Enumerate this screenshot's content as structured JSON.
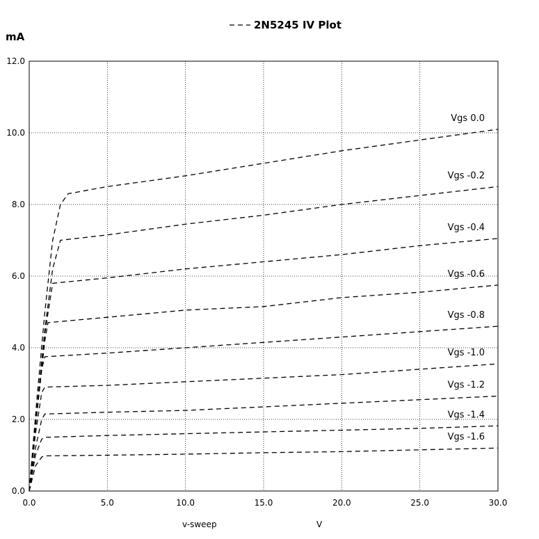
{
  "chart_data": {
    "type": "line",
    "title": "2N5245 IV Plot",
    "y_unit": "mA",
    "xlabel": "v-sweep",
    "xunit": "V",
    "xlim": [
      0,
      30
    ],
    "ylim": [
      0,
      12
    ],
    "xticks": [
      "0.0",
      "5.0",
      "10.0",
      "15.0",
      "20.0",
      "25.0",
      "30.0"
    ],
    "yticks": [
      "0.0",
      "2.0",
      "4.0",
      "6.0",
      "8.0",
      "10.0",
      "12.0"
    ],
    "grid": true,
    "line_style": "dashed",
    "series": [
      {
        "name": "Vgs 0.0",
        "x": [
          0,
          0.5,
          1.0,
          1.5,
          2.0,
          2.5,
          5,
          10,
          15,
          20,
          25,
          30
        ],
        "y": [
          0,
          2.6,
          5.0,
          7.0,
          8.0,
          8.3,
          8.5,
          8.8,
          9.15,
          9.5,
          9.8,
          10.1
        ]
      },
      {
        "name": "Vgs -0.2",
        "x": [
          0,
          0.5,
          1.0,
          1.5,
          2.0,
          5,
          10,
          15,
          20,
          25,
          30
        ],
        "y": [
          0,
          2.3,
          4.5,
          6.2,
          7.0,
          7.15,
          7.45,
          7.7,
          8.0,
          8.25,
          8.5
        ]
      },
      {
        "name": "Vgs -0.4",
        "x": [
          0,
          0.5,
          1.0,
          1.5,
          5,
          10,
          15,
          20,
          25,
          30
        ],
        "y": [
          0,
          2.3,
          4.4,
          5.8,
          5.95,
          6.2,
          6.4,
          6.6,
          6.85,
          7.05
        ]
      },
      {
        "name": "Vgs -0.6",
        "x": [
          0,
          0.5,
          1.0,
          1.2,
          5,
          10,
          15,
          20,
          25,
          30
        ],
        "y": [
          0,
          2.2,
          4.2,
          4.7,
          4.85,
          5.05,
          5.15,
          5.4,
          5.55,
          5.75
        ]
      },
      {
        "name": "Vgs -0.8",
        "x": [
          0,
          0.4,
          0.8,
          1.0,
          5,
          10,
          15,
          20,
          25,
          30
        ],
        "y": [
          0,
          1.8,
          3.4,
          3.75,
          3.85,
          4.0,
          4.15,
          4.3,
          4.45,
          4.6
        ]
      },
      {
        "name": "Vgs -1.0",
        "x": [
          0,
          0.4,
          0.8,
          1.0,
          5,
          10,
          15,
          20,
          25,
          30
        ],
        "y": [
          0,
          1.6,
          2.75,
          2.9,
          2.95,
          3.05,
          3.15,
          3.25,
          3.4,
          3.55
        ]
      },
      {
        "name": "Vgs -1.2",
        "x": [
          0,
          0.4,
          0.8,
          1.0,
          5,
          10,
          15,
          20,
          25,
          30
        ],
        "y": [
          0,
          1.2,
          2.0,
          2.15,
          2.2,
          2.25,
          2.35,
          2.45,
          2.55,
          2.65
        ]
      },
      {
        "name": "Vgs -1.4",
        "x": [
          0,
          0.4,
          0.8,
          1.0,
          5,
          10,
          15,
          20,
          25,
          30
        ],
        "y": [
          0,
          1.0,
          1.45,
          1.5,
          1.55,
          1.6,
          1.65,
          1.7,
          1.75,
          1.82
        ]
      },
      {
        "name": "Vgs -1.6",
        "x": [
          0,
          0.4,
          0.8,
          1.0,
          5,
          10,
          15,
          20,
          25,
          30
        ],
        "y": [
          0,
          0.7,
          0.95,
          0.98,
          1.0,
          1.03,
          1.07,
          1.1,
          1.15,
          1.2
        ]
      }
    ]
  }
}
